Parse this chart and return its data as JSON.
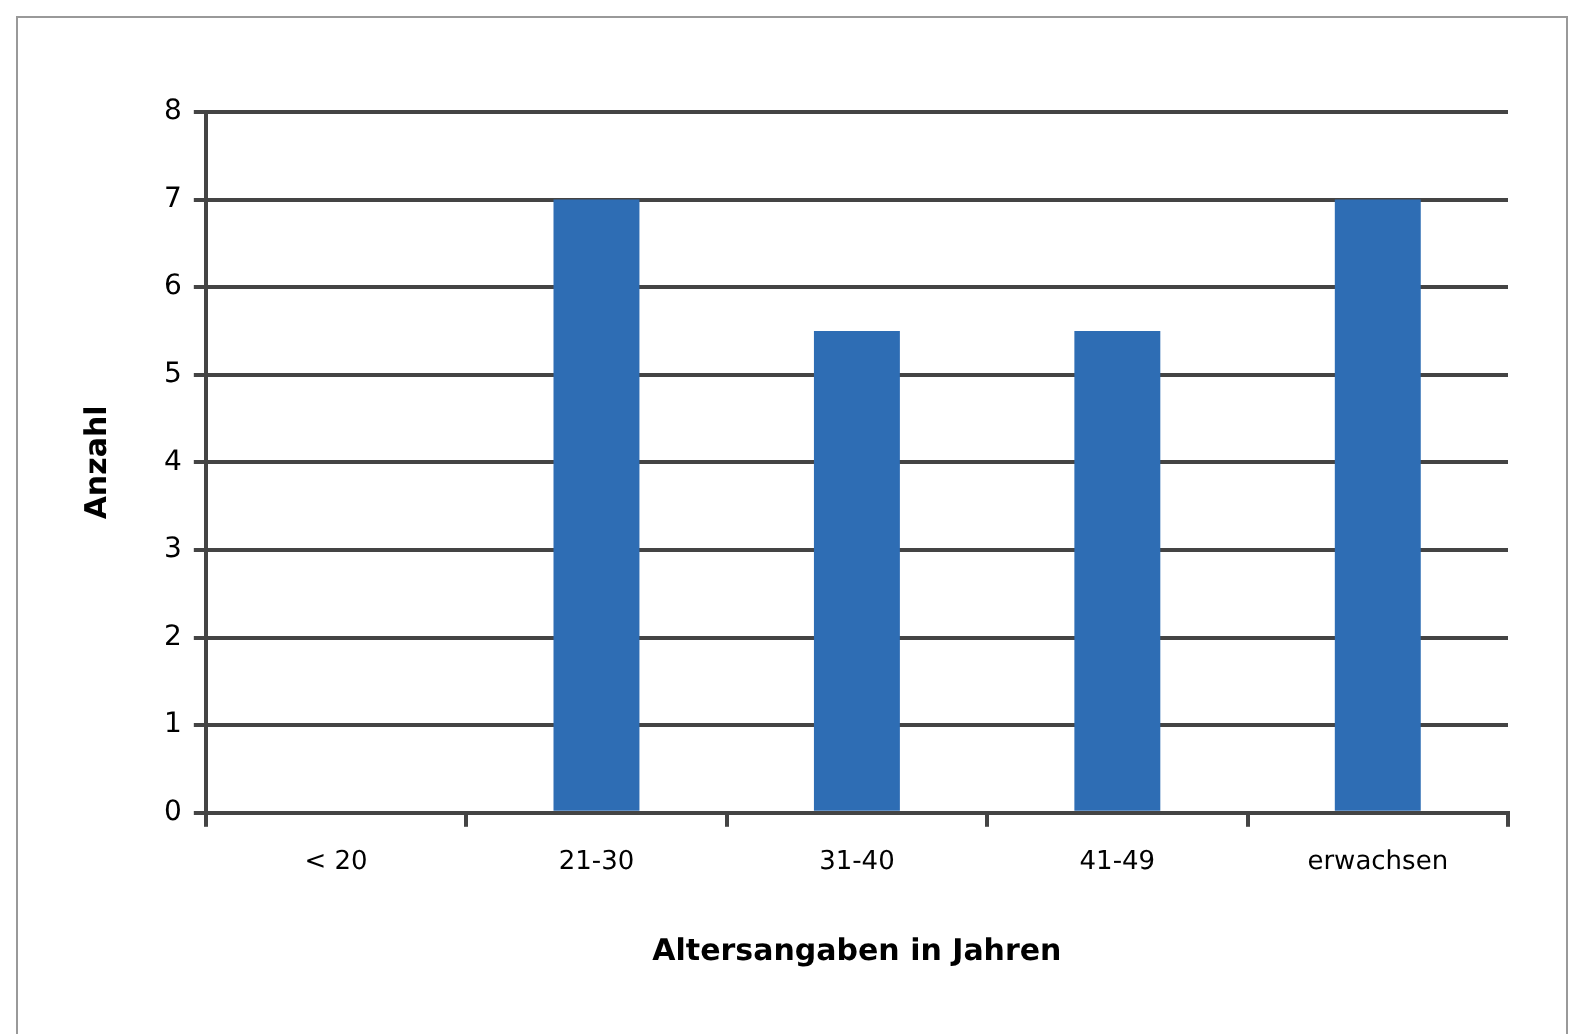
{
  "chart_data": {
    "type": "bar",
    "xlabel": "Altersangaben in Jahren",
    "ylabel": "Anzahl",
    "categories": [
      "< 20",
      "21-30",
      "31-40",
      "41-49",
      "erwachsen"
    ],
    "values": [
      0,
      7,
      5.5,
      5.5,
      7
    ],
    "color": "#2e6db4",
    "ylim": [
      0,
      8
    ],
    "yticks": [
      0,
      1,
      2,
      3,
      4,
      5,
      6,
      7,
      8
    ],
    "grid": "y",
    "legend": false
  }
}
